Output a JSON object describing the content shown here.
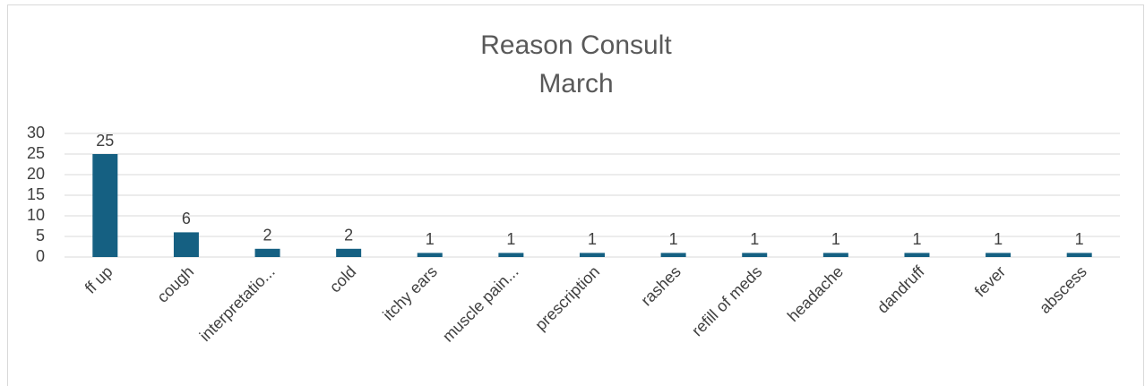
{
  "chart_data": {
    "type": "bar",
    "title": "Reason Consult",
    "subtitle": "March",
    "categories": [
      "ff up",
      "cough",
      "interpretatio...",
      "cold",
      "itchy ears",
      "muscle pain...",
      "prescription",
      "rashes",
      "refill of meds",
      "headache",
      "dandruff",
      "fever",
      "abscess"
    ],
    "values": [
      25,
      6,
      2,
      2,
      1,
      1,
      1,
      1,
      1,
      1,
      1,
      1,
      1
    ],
    "color": "#156082",
    "ylim": [
      0,
      30
    ],
    "yticks": [
      0,
      5,
      10,
      15,
      20,
      25,
      30
    ],
    "grid": true,
    "data_labels": true
  }
}
